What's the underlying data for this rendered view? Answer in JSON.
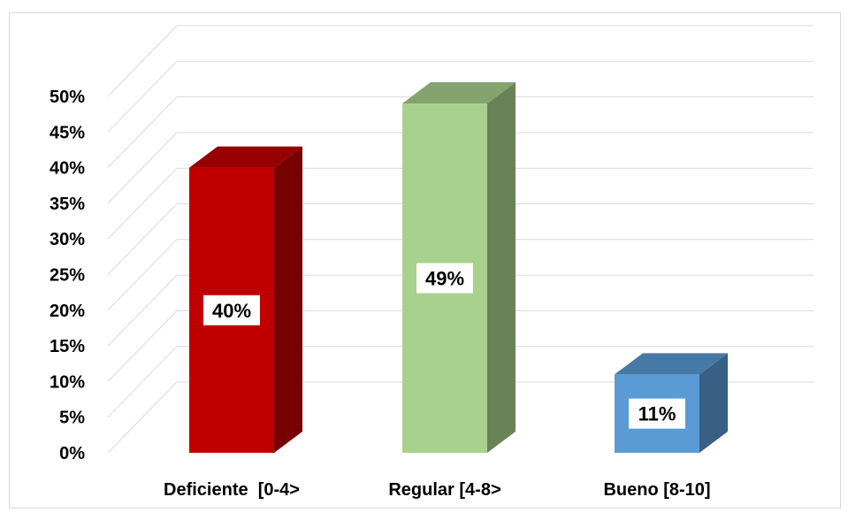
{
  "chart_data": {
    "type": "bar",
    "style": "3d-column",
    "categories": [
      "Deficiente  [0-4>",
      "Regular [4-8>",
      "Bueno [8-10]"
    ],
    "values": [
      40,
      49,
      11
    ],
    "data_labels": [
      "40%",
      "49%",
      "11%"
    ],
    "ylim": [
      0,
      50
    ],
    "yticks": [
      "0%",
      "5%",
      "10%",
      "15%",
      "20%",
      "25%",
      "30%",
      "35%",
      "40%",
      "45%",
      "50%"
    ],
    "grid": true,
    "legend": "none",
    "colors": [
      "#c00000",
      "#a9d18e",
      "#5b9bd5"
    ]
  }
}
